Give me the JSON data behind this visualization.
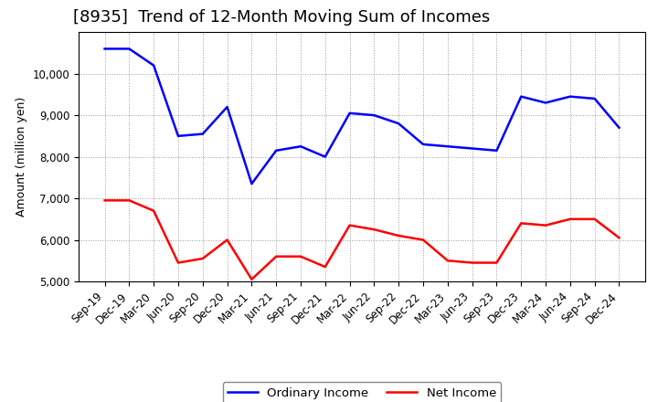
{
  "title": "[8935]  Trend of 12-Month Moving Sum of Incomes",
  "ylabel": "Amount (million yen)",
  "x_labels": [
    "Sep-19",
    "Dec-19",
    "Mar-20",
    "Jun-20",
    "Sep-20",
    "Dec-20",
    "Mar-21",
    "Jun-21",
    "Sep-21",
    "Dec-21",
    "Mar-22",
    "Jun-22",
    "Sep-22",
    "Dec-22",
    "Mar-23",
    "Jun-23",
    "Sep-23",
    "Dec-23",
    "Mar-24",
    "Jun-24",
    "Sep-24",
    "Dec-24"
  ],
  "ordinary_income": [
    10600,
    10600,
    10200,
    8500,
    8550,
    9200,
    7350,
    8150,
    8250,
    8000,
    9050,
    9000,
    8800,
    8300,
    8250,
    8200,
    8150,
    9450,
    9300,
    9450,
    9400,
    8700
  ],
  "net_income": [
    6950,
    6950,
    6700,
    5450,
    5550,
    6000,
    5050,
    5600,
    5600,
    5350,
    6350,
    6250,
    6100,
    6000,
    5500,
    5450,
    5450,
    6400,
    6350,
    6500,
    6500,
    6050
  ],
  "ordinary_color": "#0000FF",
  "net_color": "#FF0000",
  "ylim_min": 5000,
  "ylim_max": 11000,
  "ytick_max": 10000,
  "yticks": [
    5000,
    6000,
    7000,
    8000,
    9000,
    10000
  ],
  "background_color": "#FFFFFF",
  "grid_color": "#999999",
  "title_fontsize": 13,
  "label_fontsize": 9,
  "tick_fontsize": 8.5,
  "legend_fontsize": 9.5,
  "linewidth": 1.8
}
